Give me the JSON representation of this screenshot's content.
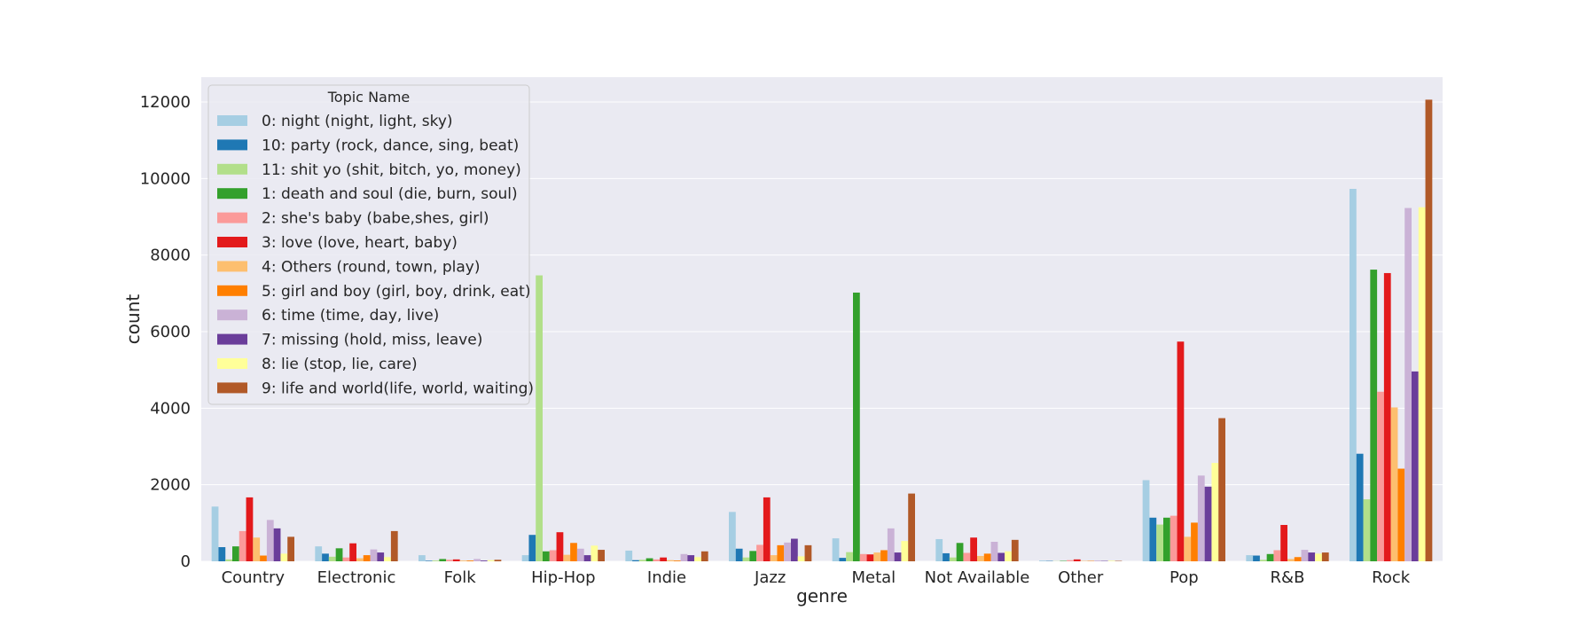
{
  "chart_data": {
    "type": "bar",
    "xlabel": "genre",
    "ylabel": "count",
    "ylim": [
      0,
      12500
    ],
    "yticks": [
      0,
      2000,
      4000,
      6000,
      8000,
      10000,
      12000
    ],
    "grid": true,
    "legend": {
      "title": "Topic Name",
      "placement": "top-left"
    },
    "categories": [
      "Country",
      "Electronic",
      "Folk",
      "Hip-Hop",
      "Indie",
      "Jazz",
      "Metal",
      "Not Available",
      "Other",
      "Pop",
      "R&B",
      "Rock"
    ],
    "series": [
      {
        "name": "0: night (night, light, sky)",
        "color": "#a6cee3",
        "values": [
          1430,
          390,
          160,
          160,
          280,
          1290,
          600,
          580,
          20,
          2120,
          160,
          9730
        ]
      },
      {
        "name": "10: party (rock, dance, sing, beat)",
        "color": "#1f78b4",
        "values": [
          370,
          200,
          15,
          690,
          30,
          330,
          90,
          210,
          10,
          1140,
          150,
          2810
        ]
      },
      {
        "name": "11: shit yo (shit, bitch, yo, money)",
        "color": "#b2df8a",
        "values": [
          50,
          120,
          20,
          7470,
          40,
          100,
          240,
          100,
          5,
          960,
          40,
          1620
        ]
      },
      {
        "name": "1: death and soul (die, burn, soul)",
        "color": "#33a02c",
        "values": [
          390,
          340,
          60,
          260,
          80,
          270,
          7020,
          480,
          10,
          1140,
          190,
          7620
        ]
      },
      {
        "name": "2: she's baby (babe,shes, girl)",
        "color": "#fb9a99",
        "values": [
          790,
          100,
          40,
          290,
          50,
          430,
          190,
          220,
          30,
          1190,
          290,
          4430
        ]
      },
      {
        "name": "3: love (love, heart, baby)",
        "color": "#e31a1c",
        "values": [
          1670,
          470,
          50,
          760,
          100,
          1670,
          180,
          620,
          50,
          5740,
          950,
          7530
        ]
      },
      {
        "name": "4: Others (round, town, play)",
        "color": "#fdbf6f",
        "values": [
          620,
          80,
          20,
          170,
          30,
          160,
          230,
          140,
          10,
          640,
          60,
          4020
        ]
      },
      {
        "name": "5: girl and boy (girl, boy, drink, eat)",
        "color": "#ff7f00",
        "values": [
          150,
          160,
          20,
          480,
          20,
          420,
          290,
          200,
          10,
          1010,
          110,
          2420
        ]
      },
      {
        "name": "6: time (time, day, live)",
        "color": "#cab2d6",
        "values": [
          1080,
          310,
          60,
          330,
          190,
          490,
          860,
          510,
          20,
          2240,
          300,
          9230
        ]
      },
      {
        "name": "7: missing (hold, miss, leave)",
        "color": "#6a3d9a",
        "values": [
          860,
          230,
          20,
          160,
          160,
          590,
          230,
          220,
          10,
          1950,
          230,
          4960
        ]
      },
      {
        "name": "8: lie (stop, lie, care)",
        "color": "#ffff99",
        "values": [
          200,
          110,
          30,
          410,
          110,
          130,
          530,
          260,
          15,
          2570,
          200,
          9250
        ]
      },
      {
        "name": "9: life and world(life, world, waiting)",
        "color": "#b15928",
        "values": [
          640,
          790,
          40,
          300,
          260,
          420,
          1770,
          560,
          10,
          3740,
          230,
          12060
        ]
      }
    ]
  }
}
